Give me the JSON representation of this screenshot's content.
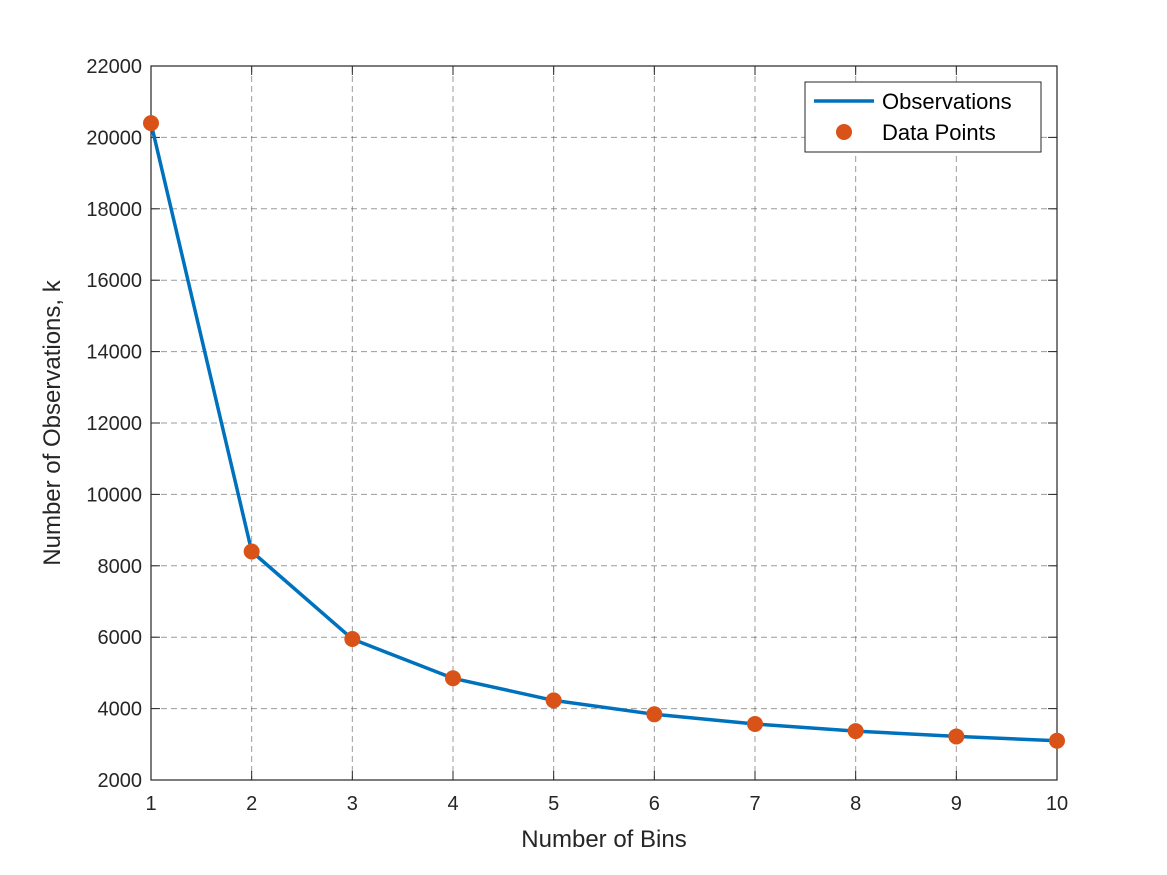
{
  "chart_data": {
    "type": "line",
    "title": "",
    "xlabel": "Number of Bins",
    "ylabel": "Number of Observations, k",
    "xlim": [
      1,
      10
    ],
    "ylim": [
      2000,
      22000
    ],
    "xticks": [
      1,
      2,
      3,
      4,
      5,
      6,
      7,
      8,
      9,
      10
    ],
    "yticks": [
      2000,
      4000,
      6000,
      8000,
      10000,
      12000,
      14000,
      16000,
      18000,
      20000,
      22000
    ],
    "grid": true,
    "legend_position": "top-right",
    "x": [
      1,
      2,
      3,
      4,
      5,
      6,
      7,
      8,
      9,
      10
    ],
    "series": [
      {
        "name": "Observations",
        "style": "line",
        "color": "#0072BD",
        "values": [
          20400,
          8400,
          5950,
          4850,
          4230,
          3840,
          3570,
          3370,
          3220,
          3100
        ]
      },
      {
        "name": "Data Points",
        "style": "markers",
        "color": "#D95319",
        "values": [
          20400,
          8400,
          5950,
          4850,
          4230,
          3840,
          3570,
          3370,
          3220,
          3100
        ]
      }
    ]
  }
}
